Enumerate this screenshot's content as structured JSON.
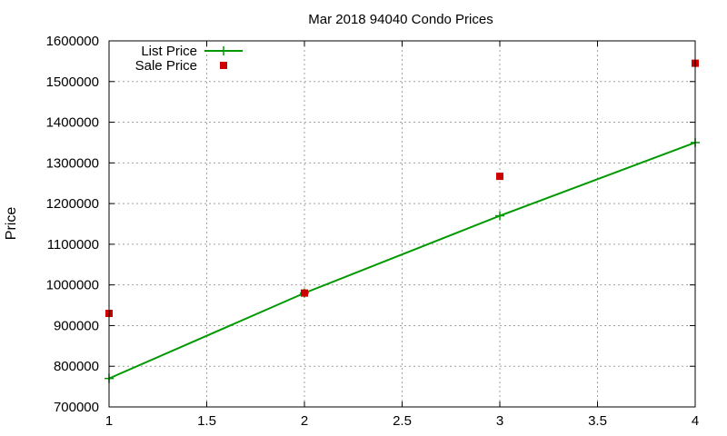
{
  "chart_data": {
    "type": "line",
    "title": "Mar 2018 94040 Condo Prices",
    "xlabel": "",
    "ylabel": "Price",
    "xlim": [
      1,
      4
    ],
    "ylim": [
      700000,
      1600000
    ],
    "x_ticks": [
      "1",
      "1.5",
      "2",
      "2.5",
      "3",
      "3.5",
      "4"
    ],
    "y_ticks": [
      "700000",
      "800000",
      "900000",
      "1000000",
      "1100000",
      "1200000",
      "1300000",
      "1400000",
      "1500000",
      "1600000"
    ],
    "grid": true,
    "legend_position": "top-left",
    "series": [
      {
        "name": "List Price",
        "style": "line-with-plus-markers",
        "color": "#009900",
        "x": [
          1,
          2,
          3,
          4
        ],
        "y": [
          770000,
          980000,
          1170000,
          1350000
        ]
      },
      {
        "name": "Sale Price",
        "style": "square-markers",
        "color": "#cc0000",
        "x": [
          1,
          2,
          3,
          4
        ],
        "y": [
          930000,
          980000,
          1267000,
          1545000
        ]
      }
    ]
  }
}
